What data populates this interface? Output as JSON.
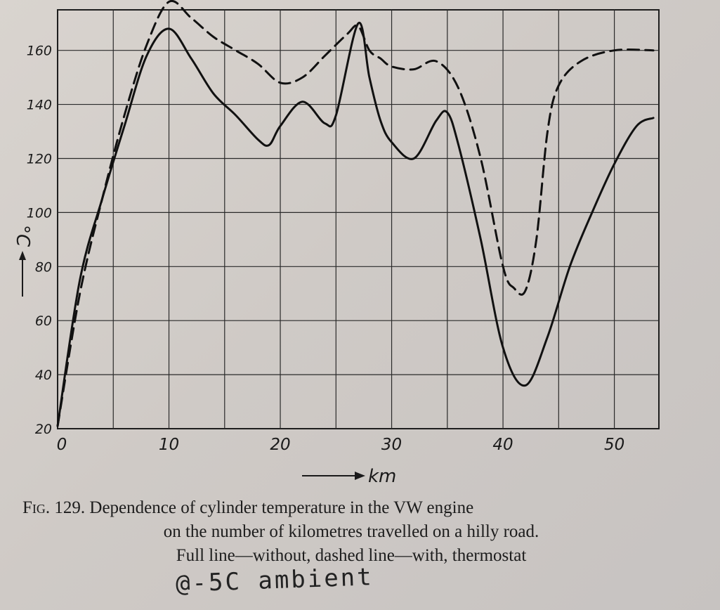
{
  "chart_data": {
    "type": "line",
    "xlabel": "km",
    "ylabel": "°C",
    "xlim": [
      0,
      54
    ],
    "ylim": [
      20,
      175
    ],
    "x_ticks": [
      0,
      10,
      20,
      30,
      40,
      50
    ],
    "y_ticks": [
      20,
      40,
      60,
      80,
      100,
      120,
      140,
      160
    ],
    "grid": true,
    "series": [
      {
        "style": "solid",
        "x": [
          0,
          2,
          4,
          6,
          8,
          10,
          12,
          14,
          16,
          18,
          19,
          20,
          22,
          24,
          25,
          27,
          28,
          29,
          30,
          32,
          34,
          35,
          36,
          38,
          40,
          42,
          44,
          46,
          48,
          50,
          52,
          53.5
        ],
        "y": [
          21,
          75,
          105,
          132,
          158,
          168,
          157,
          144,
          136,
          127,
          125,
          132,
          141,
          133,
          136,
          170,
          150,
          134,
          126,
          120,
          134,
          137,
          125,
          90,
          50,
          36,
          54,
          80,
          100,
          118,
          132,
          135
        ]
      },
      {
        "style": "dashed",
        "x": [
          0,
          2,
          4,
          6,
          8,
          10,
          12,
          14,
          16,
          18,
          20,
          22,
          24,
          26,
          27,
          28,
          29,
          30,
          32,
          34,
          36,
          38,
          40,
          41,
          42,
          43,
          44,
          45,
          47,
          50,
          53.5
        ],
        "y": [
          21,
          70,
          105,
          136,
          162,
          178,
          172,
          165,
          160,
          155,
          148,
          150,
          158,
          166,
          169,
          160,
          157,
          154,
          153,
          156,
          146,
          120,
          80,
          72,
          71,
          90,
          130,
          147,
          156,
          160,
          160
        ]
      }
    ]
  },
  "caption": {
    "fig_prefix": "Fig. 129.",
    "line1": "Dependence of cylinder temperature in the VW engine",
    "line2": "on the number of kilometres travelled on a hilly road.",
    "line3": "Full line—without, dashed line—with, thermostat"
  },
  "handwritten_note": "@-5C ambient"
}
